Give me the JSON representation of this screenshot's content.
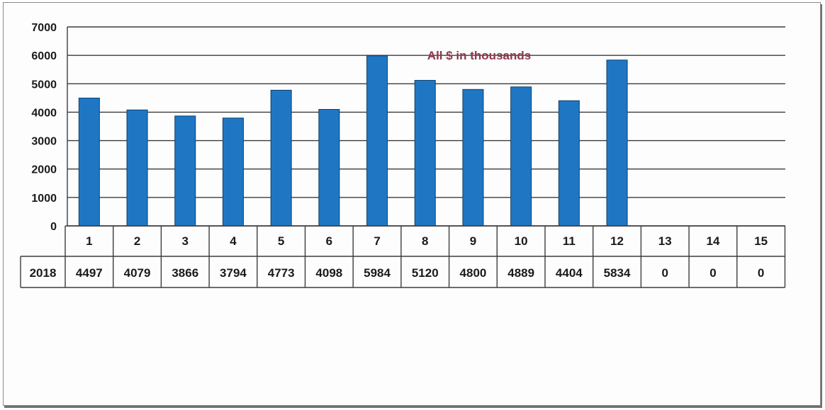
{
  "chart_data": {
    "type": "bar",
    "annotation": "All $ in thousands",
    "ylim": [
      0,
      7000
    ],
    "yticks": [
      "0",
      "1000",
      "2000",
      "3000",
      "4000",
      "5000",
      "6000",
      "7000"
    ],
    "categories": [
      "1",
      "2",
      "3",
      "4",
      "5",
      "6",
      "7",
      "8",
      "9",
      "10",
      "11",
      "12",
      "13",
      "14",
      "15"
    ],
    "table_row_label": "2018",
    "table_values": [
      "4497",
      "4079",
      "3866",
      "3794",
      "4773",
      "4098",
      "5984",
      "5120",
      "4800",
      "4889",
      "4404",
      "5834",
      "0",
      "0",
      "0"
    ],
    "values": [
      4497,
      4079,
      3866,
      3794,
      4773,
      4098,
      5984,
      5120,
      4800,
      4889,
      4404,
      5834,
      0,
      0,
      0
    ],
    "grid": true,
    "bar_color": "#1f77c4"
  }
}
